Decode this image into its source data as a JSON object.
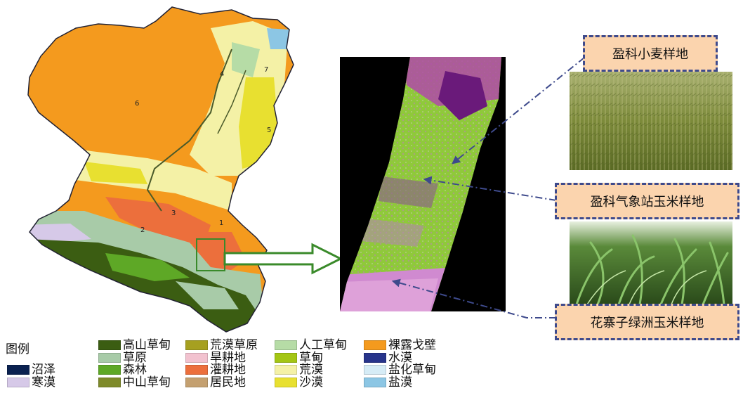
{
  "legend": {
    "title": "图例",
    "items": [
      {
        "label": "高山草甸",
        "color": "#3b5d12"
      },
      {
        "label": "荒漠草原",
        "color": "#a6a020"
      },
      {
        "label": "人工草甸",
        "color": "#b6dca6"
      },
      {
        "label": "裸露戈壁",
        "color": "#f49a1e"
      },
      {
        "label": "草原",
        "color": "#a8cba8"
      },
      {
        "label": "旱耕地",
        "color": "#f2c2cf"
      },
      {
        "label": "草甸",
        "color": "#a4c614"
      },
      {
        "label": "水漠",
        "color": "#27348b"
      },
      {
        "label": "沼泽",
        "color": "#0a2150"
      },
      {
        "label": "森林",
        "color": "#5ea826"
      },
      {
        "label": "灌耕地",
        "color": "#ec6f3c"
      },
      {
        "label": "荒漠",
        "color": "#f4f1a6"
      },
      {
        "label": "盐化草甸",
        "color": "#d6ecf6"
      },
      {
        "label": "寒漠",
        "color": "#d6c9e8"
      },
      {
        "label": "中山草甸",
        "color": "#7e8a2a"
      },
      {
        "label": "居民地",
        "color": "#c4a070"
      },
      {
        "label": "沙漠",
        "color": "#e8e030"
      },
      {
        "label": "盐漠",
        "color": "#8cc6e4"
      }
    ]
  },
  "map_region_labels": [
    "1",
    "2",
    "3",
    "4",
    "5",
    "6",
    "7"
  ],
  "callouts": [
    {
      "label": "盈科小麦样地"
    },
    {
      "label": "盈科气象站玉米样地"
    },
    {
      "label": "花寨子绿洲玉米样地"
    }
  ],
  "photos": [
    {
      "subject": "wheat-field"
    },
    {
      "subject": "corn-field"
    }
  ],
  "colors": {
    "callout_fill": "#fbd4ae",
    "callout_border": "#3e4a8c",
    "pointer_line": "#3e4a8c",
    "zoom_arrow": "#3a8a2a",
    "satellite_green": "#8fc93a",
    "satellite_magenta": "#b04aa8"
  }
}
